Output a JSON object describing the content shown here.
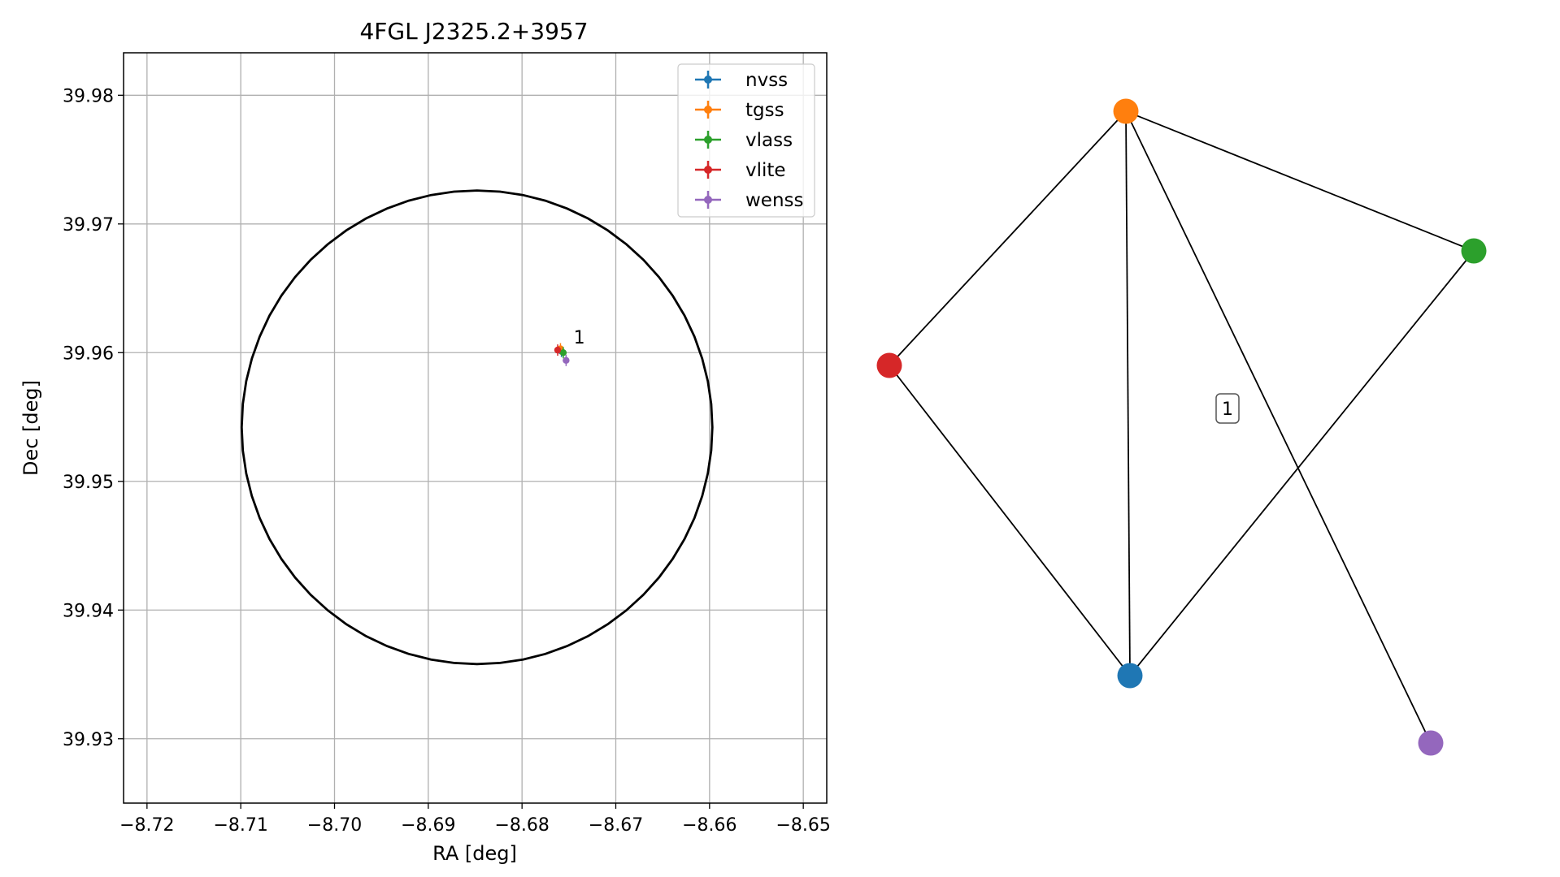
{
  "chart_data": [
    {
      "type": "scatter",
      "title": "4FGL J2325.2+3957",
      "xlabel": "RA [deg]",
      "ylabel": "Dec [deg]",
      "xlim": [
        -8.7225,
        -8.6475
      ],
      "ylim": [
        39.925,
        39.9833
      ],
      "xticks": [
        -8.72,
        -8.71,
        -8.7,
        -8.69,
        -8.68,
        -8.67,
        -8.66,
        -8.65
      ],
      "xtick_labels": [
        "−8.72",
        "−8.71",
        "−8.70",
        "−8.69",
        "−8.68",
        "−8.67",
        "−8.66",
        "−8.65"
      ],
      "yticks": [
        39.93,
        39.94,
        39.95,
        39.96,
        39.97,
        39.98
      ],
      "ytick_labels": [
        "39.93",
        "39.94",
        "39.95",
        "39.96",
        "39.97",
        "39.98"
      ],
      "grid": true,
      "legend_position": "top-right",
      "series": [
        {
          "name": "nvss",
          "color": "#1f77b4",
          "x": -8.6758,
          "y": 39.9601
        },
        {
          "name": "tgss",
          "color": "#ff7f0e",
          "x": -8.6759,
          "y": 39.9603
        },
        {
          "name": "vlass",
          "color": "#2ca02c",
          "x": -8.6756,
          "y": 39.96
        },
        {
          "name": "vlite",
          "color": "#d62728",
          "x": -8.6762,
          "y": 39.9602
        },
        {
          "name": "wenss",
          "color": "#9467bd",
          "x": -8.6753,
          "y": 39.9594
        }
      ],
      "annotations": [
        {
          "text": "1",
          "x": -8.6745,
          "y": 39.9607
        }
      ],
      "ellipse": {
        "center": [
          -8.6848,
          39.9542
        ],
        "semi_axis_ra": 0.0251,
        "semi_axis_dec": 0.0184,
        "color": "#000000"
      }
    },
    {
      "type": "graph",
      "nodes": [
        {
          "id": "nvss",
          "color": "#1f77b4"
        },
        {
          "id": "tgss",
          "color": "#ff7f0e"
        },
        {
          "id": "vlass",
          "color": "#2ca02c"
        },
        {
          "id": "vlite",
          "color": "#d62728"
        },
        {
          "id": "wenss",
          "color": "#9467bd"
        }
      ],
      "edges": [
        [
          "tgss",
          "vlite"
        ],
        [
          "tgss",
          "vlass"
        ],
        [
          "tgss",
          "nvss"
        ],
        [
          "tgss",
          "wenss"
        ],
        [
          "vlite",
          "nvss"
        ],
        [
          "vlass",
          "nvss"
        ]
      ],
      "label": "1"
    }
  ]
}
